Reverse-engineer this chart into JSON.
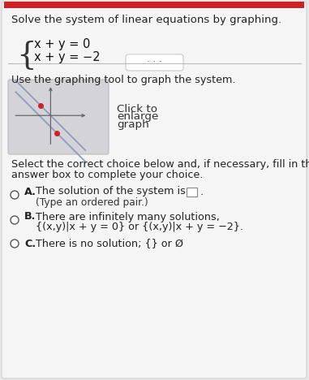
{
  "title_text": "Solve the system of linear equations by graphing.",
  "equation1": "x + y = 0",
  "equation2": "x + y = −2",
  "divider_text": "· · ·",
  "graphing_tool_label": "Use the graphing tool to graph the system.",
  "click_line1": "Click to",
  "click_line2": "enlarge",
  "click_line3": "graph",
  "select_text1": "Select the correct choice below and, if necessary, fill in the",
  "select_text2": "answer box to complete your choice.",
  "choice_A_text1": "The solution of the system is",
  "choice_A_text2": "(Type an ordered pair.)",
  "choice_B_text1": "There are infinitely many solutions,",
  "choice_B_text2": "{(x,y)|x + y = 0} or {(x,y)|x + y = −2}.",
  "choice_C_text": "There is no solution; {} or Ø",
  "outer_bg": "#e8e8e8",
  "inner_bg": "#f5f5f5",
  "graph_box_bg": "#d4d4d8",
  "graph_line_color": "#8899bb",
  "graph_axis_color": "#666666",
  "graph_dot_color": "#cc2222",
  "title_fontsize": 9.5,
  "body_fontsize": 9.2,
  "eq_fontsize": 10.5,
  "small_fontsize": 8.8
}
